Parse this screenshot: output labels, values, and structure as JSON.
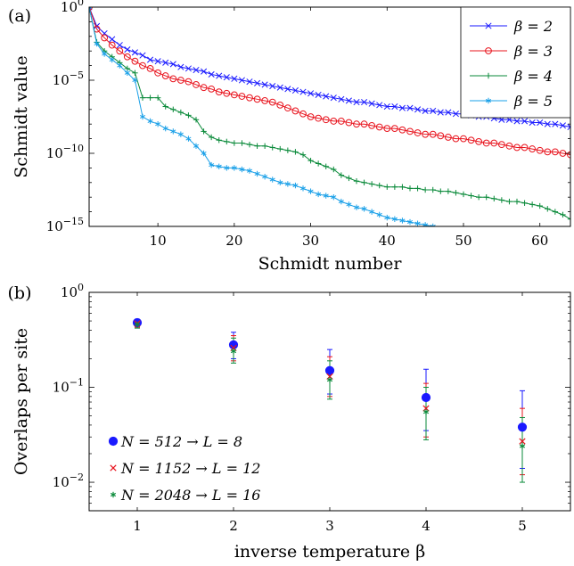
{
  "chart_data": [
    {
      "panel_label": "(a)",
      "type": "line",
      "xlabel": "Schmidt number",
      "ylabel": "Schmidt value",
      "xlim": [
        1,
        64
      ],
      "ylim_exp": [
        -15,
        0
      ],
      "yscale": "log",
      "xticks": [
        "10",
        "20",
        "30",
        "40",
        "50",
        "60"
      ],
      "yticks": [
        {
          "base": "10",
          "exp": "0"
        },
        {
          "base": "10",
          "exp": "−5"
        },
        {
          "base": "10",
          "exp": "−10"
        },
        {
          "base": "10",
          "exp": "−15"
        }
      ],
      "legend_position": "top-right",
      "series": [
        {
          "name": "β = 2",
          "color": "#1a1aff",
          "marker": "x",
          "log10_values": [
            0,
            -1.3,
            -1.8,
            -2.2,
            -2.6,
            -2.9,
            -3.1,
            -3.3,
            -3.6,
            -3.7,
            -3.8,
            -3.9,
            -4.1,
            -4.2,
            -4.3,
            -4.4,
            -4.6,
            -4.7,
            -4.8,
            -4.9,
            -5.0,
            -5.1,
            -5.2,
            -5.3,
            -5.4,
            -5.5,
            -5.6,
            -5.7,
            -5.8,
            -5.9,
            -6.0,
            -6.1,
            -6.2,
            -6.3,
            -6.4,
            -6.5,
            -6.5,
            -6.6,
            -6.7,
            -6.8,
            -6.8,
            -6.9,
            -6.9,
            -7.0,
            -7.1,
            -7.1,
            -7.2,
            -7.2,
            -7.3,
            -7.3,
            -7.4,
            -7.5,
            -7.5,
            -7.6,
            -7.7,
            -7.7,
            -7.8,
            -7.8,
            -7.9,
            -7.9,
            -8.0,
            -8.0,
            -8.1,
            -8.2
          ]
        },
        {
          "name": "β = 3",
          "color": "#e8141e",
          "marker": "o",
          "log10_values": [
            0,
            -1.5,
            -2.1,
            -2.6,
            -3.0,
            -3.4,
            -3.7,
            -4.0,
            -4.2,
            -4.5,
            -4.7,
            -4.9,
            -5.0,
            -5.1,
            -5.3,
            -5.5,
            -5.6,
            -5.8,
            -5.9,
            -6.0,
            -6.1,
            -6.2,
            -6.3,
            -6.4,
            -6.5,
            -6.7,
            -6.9,
            -7.1,
            -7.3,
            -7.5,
            -7.6,
            -7.7,
            -7.8,
            -7.8,
            -7.9,
            -8.0,
            -8.0,
            -8.1,
            -8.2,
            -8.3,
            -8.3,
            -8.4,
            -8.5,
            -8.6,
            -8.7,
            -8.7,
            -8.8,
            -8.9,
            -9.0,
            -9.0,
            -9.1,
            -9.2,
            -9.3,
            -9.3,
            -9.4,
            -9.5,
            -9.6,
            -9.6,
            -9.7,
            -9.8,
            -9.9,
            -9.9,
            -10.0,
            -10.1
          ]
        },
        {
          "name": "β = 4",
          "color": "#0a8a3a",
          "marker": "+",
          "log10_values": [
            0,
            -2.4,
            -3.0,
            -3.4,
            -3.8,
            -4.2,
            -4.5,
            -6.2,
            -6.2,
            -6.2,
            -6.8,
            -7.0,
            -7.2,
            -7.4,
            -7.7,
            -8.5,
            -8.9,
            -9.1,
            -9.2,
            -9.3,
            -9.3,
            -9.4,
            -9.5,
            -9.5,
            -9.6,
            -9.7,
            -9.8,
            -9.9,
            -10.1,
            -10.5,
            -10.7,
            -10.9,
            -11.1,
            -11.5,
            -11.7,
            -11.9,
            -12.0,
            -12.1,
            -12.2,
            -12.3,
            -12.3,
            -12.3,
            -12.4,
            -12.4,
            -12.5,
            -12.5,
            -12.6,
            -12.6,
            -12.7,
            -12.8,
            -12.9,
            -13.0,
            -13.0,
            -13.1,
            -13.2,
            -13.3,
            -13.3,
            -13.4,
            -13.5,
            -13.6,
            -13.8,
            -14.0,
            -14.2,
            -14.5
          ]
        },
        {
          "name": "β = 5",
          "color": "#1aa0e8",
          "marker": "*",
          "log10_values": [
            0,
            -2.5,
            -3.2,
            -3.6,
            -4.0,
            -4.5,
            -5.0,
            -7.5,
            -7.8,
            -8.0,
            -8.3,
            -8.5,
            -8.7,
            -9.0,
            -9.5,
            -10.0,
            -10.8,
            -10.9,
            -11.0,
            -11.0,
            -11.1,
            -11.2,
            -11.4,
            -11.6,
            -11.8,
            -12.0,
            -12.1,
            -12.2,
            -12.4,
            -12.6,
            -12.8,
            -12.9,
            -13.0,
            -13.3,
            -13.5,
            -13.7,
            -13.8,
            -14.0,
            -14.2,
            -14.4,
            -14.5,
            -14.6,
            -14.7,
            -14.8,
            -14.9,
            -15.0
          ]
        }
      ]
    },
    {
      "panel_label": "(b)",
      "type": "scatter",
      "xlabel": "inverse temperature β",
      "ylabel": "Overlaps per site",
      "xlim": [
        0.5,
        5.5
      ],
      "ylim_exp": [
        -2.3,
        0
      ],
      "yscale": "log",
      "xticks": [
        "1",
        "2",
        "3",
        "4",
        "5"
      ],
      "yticks": [
        {
          "base": "10",
          "exp": "0"
        },
        {
          "base": "10",
          "exp": "−1"
        },
        {
          "base": "10",
          "exp": "−2"
        }
      ],
      "legend_position": "bottom-left",
      "series": [
        {
          "name": "N = 512 → L = 8",
          "color": "#1a1aff",
          "marker": "circle",
          "x": [
            1,
            2,
            3,
            4,
            5
          ],
          "y": [
            0.48,
            0.28,
            0.15,
            0.078,
            0.038
          ],
          "err_low": [
            0.44,
            0.2,
            0.085,
            0.035,
            0.014
          ],
          "err_high": [
            0.52,
            0.38,
            0.25,
            0.155,
            0.092
          ]
        },
        {
          "name": "N = 1152 → L = 12",
          "color": "#e8141e",
          "marker": "x",
          "x": [
            1,
            2,
            3,
            4,
            5
          ],
          "y": [
            0.47,
            0.26,
            0.13,
            0.06,
            0.027
          ],
          "err_low": [
            0.43,
            0.19,
            0.08,
            0.03,
            0.012
          ],
          "err_high": [
            0.51,
            0.35,
            0.21,
            0.11,
            0.06
          ]
        },
        {
          "name": "N = 2048 → L = 16",
          "color": "#0a8a3a",
          "marker": "*",
          "x": [
            1,
            2,
            3,
            4,
            5
          ],
          "y": [
            0.46,
            0.24,
            0.12,
            0.055,
            0.024
          ],
          "err_low": [
            0.42,
            0.18,
            0.075,
            0.028,
            0.01
          ],
          "err_high": [
            0.5,
            0.33,
            0.19,
            0.1,
            0.048
          ]
        }
      ]
    }
  ]
}
